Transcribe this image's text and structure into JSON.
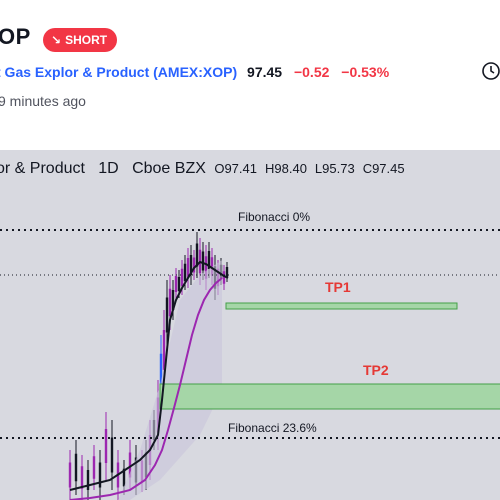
{
  "header": {
    "ticker": "OP",
    "badge": "SHORT",
    "company": "t Gas Explor & Product",
    "exchange": "(AMEX:XOP)",
    "price": "97.45",
    "change": "−0.52",
    "change_pct": "−0.53%",
    "time_ago": "9 minutes ago"
  },
  "chart": {
    "title": "or & Product",
    "interval": "1D",
    "source": "Cboe BZX",
    "ohlc": {
      "o": "O97.41",
      "h": "H98.40",
      "l": "L95.73",
      "c": "C97.45"
    },
    "labels": {
      "fib0": "Fibonacci 0%",
      "tp1": "TP1",
      "tp2": "TP2",
      "fib236": "Fibonacci 23.6%"
    },
    "colors": {
      "background": "#d8d9e0",
      "ma_fast": "#131722",
      "ma_slow": "#9c27b0",
      "tp_zone": "#a5d6a7",
      "tp_border": "#43a047",
      "short_badge": "#f23645",
      "accent_link": "#2962ff"
    }
  }
}
